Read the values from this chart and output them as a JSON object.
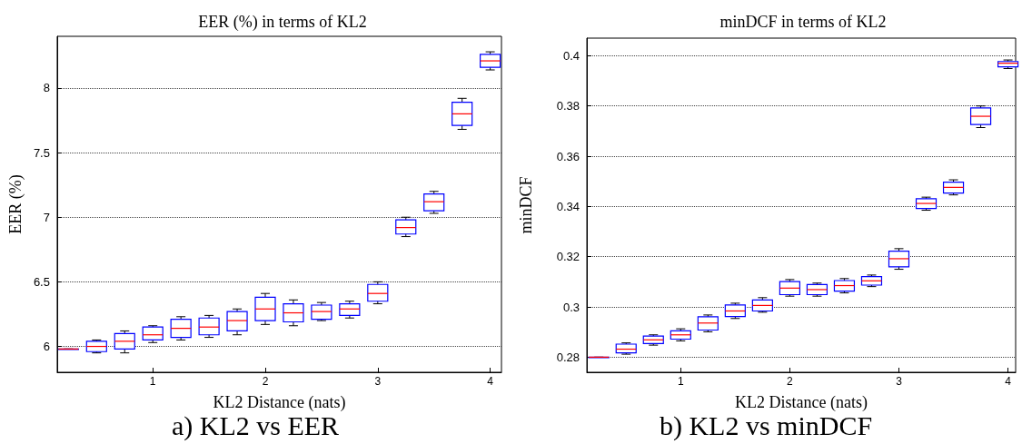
{
  "chart_data": [
    {
      "type": "box",
      "title": "EER (%) in terms of KL2",
      "xlabel": "KL2 Distance (nats)",
      "ylabel": "EER (%)",
      "annotations": [
        "a) KL2 vs EER"
      ],
      "xlim": [
        0.15,
        4.1
      ],
      "xticks": [
        1,
        2,
        3,
        4
      ],
      "ylim": [
        5.8,
        8.4
      ],
      "yticks": [
        6,
        6.5,
        7,
        7.5,
        8
      ],
      "grid": "y",
      "x": [
        0.25,
        0.5,
        0.75,
        1,
        1.25,
        1.5,
        1.75,
        2,
        2.25,
        2.5,
        2.75,
        3,
        3.25,
        3.5,
        3.75,
        4
      ],
      "series": [
        {
          "color": "#0000ff",
          "boxes": [
            {
              "low": 5.98,
              "q1": 5.98,
              "median": 5.98,
              "q3": 5.98,
              "high": 5.98
            },
            {
              "low": 5.95,
              "q1": 5.96,
              "median": 6.0,
              "q3": 6.04,
              "high": 6.05
            },
            {
              "low": 5.95,
              "q1": 5.98,
              "median": 6.04,
              "q3": 6.1,
              "high": 6.12
            },
            {
              "low": 6.03,
              "q1": 6.05,
              "median": 6.09,
              "q3": 6.15,
              "high": 6.16
            },
            {
              "low": 6.05,
              "q1": 6.07,
              "median": 6.14,
              "q3": 6.21,
              "high": 6.23
            },
            {
              "low": 6.07,
              "q1": 6.09,
              "median": 6.15,
              "q3": 6.22,
              "high": 6.24
            },
            {
              "low": 6.09,
              "q1": 6.12,
              "median": 6.2,
              "q3": 6.27,
              "high": 6.29
            },
            {
              "low": 6.17,
              "q1": 6.2,
              "median": 6.29,
              "q3": 6.38,
              "high": 6.41
            },
            {
              "low": 6.16,
              "q1": 6.19,
              "median": 6.26,
              "q3": 6.33,
              "high": 6.36
            },
            {
              "low": 6.2,
              "q1": 6.21,
              "median": 6.27,
              "q3": 6.32,
              "high": 6.34
            },
            {
              "low": 6.22,
              "q1": 6.24,
              "median": 6.29,
              "q3": 6.33,
              "high": 6.35
            },
            {
              "low": 6.33,
              "q1": 6.35,
              "median": 6.41,
              "q3": 6.48,
              "high": 6.5
            },
            {
              "low": 6.85,
              "q1": 6.87,
              "median": 6.92,
              "q3": 6.98,
              "high": 7.0
            },
            {
              "low": 7.03,
              "q1": 7.05,
              "median": 7.12,
              "q3": 7.18,
              "high": 7.2
            },
            {
              "low": 7.68,
              "q1": 7.71,
              "median": 7.8,
              "q3": 7.89,
              "high": 7.92
            },
            {
              "low": 8.14,
              "q1": 8.16,
              "median": 8.21,
              "q3": 8.26,
              "high": 8.28
            }
          ]
        }
      ]
    },
    {
      "type": "box",
      "title": "minDCF in terms of KL2",
      "xlabel": "KL2 Distance (nats)",
      "ylabel": "minDCF",
      "annotations": [
        "b) KL2 vs minDCF"
      ],
      "xlim": [
        0.14,
        4.07
      ],
      "xticks": [
        1,
        2,
        3,
        4
      ],
      "ylim": [
        0.274,
        0.407
      ],
      "yticks": [
        0.28,
        0.3,
        0.32,
        0.34,
        0.36,
        0.38,
        0.4
      ],
      "grid": "y",
      "x": [
        0.25,
        0.5,
        0.75,
        1,
        1.25,
        1.5,
        1.75,
        2,
        2.25,
        2.5,
        2.75,
        3,
        3.25,
        3.5,
        3.75,
        4
      ],
      "series": [
        {
          "color": "#0000ff",
          "boxes": [
            {
              "low": 0.28,
              "q1": 0.28,
              "median": 0.28,
              "q3": 0.28,
              "high": 0.28
            },
            {
              "low": 0.2812,
              "q1": 0.2817,
              "median": 0.2832,
              "q3": 0.2852,
              "high": 0.2857
            },
            {
              "low": 0.2848,
              "q1": 0.2854,
              "median": 0.2869,
              "q3": 0.2884,
              "high": 0.2889
            },
            {
              "low": 0.2865,
              "q1": 0.2872,
              "median": 0.2889,
              "q3": 0.2905,
              "high": 0.2913
            },
            {
              "low": 0.2901,
              "q1": 0.2908,
              "median": 0.2936,
              "q3": 0.2961,
              "high": 0.2968
            },
            {
              "low": 0.2954,
              "q1": 0.2962,
              "median": 0.2984,
              "q3": 0.3008,
              "high": 0.3015
            },
            {
              "low": 0.2979,
              "q1": 0.2984,
              "median": 0.3006,
              "q3": 0.3028,
              "high": 0.3037
            },
            {
              "low": 0.3043,
              "q1": 0.3049,
              "median": 0.3075,
              "q3": 0.3101,
              "high": 0.3109
            },
            {
              "low": 0.3043,
              "q1": 0.3049,
              "median": 0.3069,
              "q3": 0.3089,
              "high": 0.3095
            },
            {
              "low": 0.3056,
              "q1": 0.3063,
              "median": 0.3085,
              "q3": 0.3105,
              "high": 0.3113
            },
            {
              "low": 0.3081,
              "q1": 0.3087,
              "median": 0.3104,
              "q3": 0.3121,
              "high": 0.3127
            },
            {
              "low": 0.315,
              "q1": 0.316,
              "median": 0.3192,
              "q3": 0.3222,
              "high": 0.3232
            },
            {
              "low": 0.3385,
              "q1": 0.3392,
              "median": 0.3412,
              "q3": 0.3431,
              "high": 0.3437
            },
            {
              "low": 0.3446,
              "q1": 0.3453,
              "median": 0.3476,
              "q3": 0.3497,
              "high": 0.3506
            },
            {
              "low": 0.3714,
              "q1": 0.3726,
              "median": 0.3759,
              "q3": 0.3792,
              "high": 0.38
            },
            {
              "low": 0.3949,
              "q1": 0.3956,
              "median": 0.397,
              "q3": 0.3977,
              "high": 0.3983
            }
          ]
        }
      ]
    }
  ]
}
